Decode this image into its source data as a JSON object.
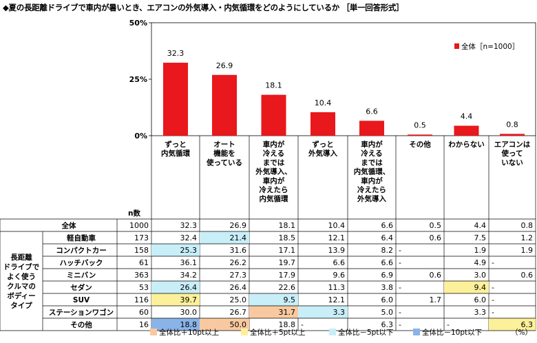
{
  "title": "◆夏の長距離ドライブで車内が暑いとき、エアコンの外気導入・内気循環をどのようにしているか ［単一回答形式］",
  "chart_data": {
    "type": "bar",
    "categories": [
      "ずっと\n内気循環",
      "オート\n機能を\n使っている",
      "車内が\n冷える\nまでは\n外気導入、\n車内が\n冷えたら\n内気循環",
      "ずっと\n外気導入",
      "車内が\n冷える\nまでは\n内気循環、\n車内が\n冷えたら\n外気導入",
      "その他",
      "わからない",
      "エアコンは\n使って\nいない"
    ],
    "values": [
      32.3,
      26.9,
      18.1,
      10.4,
      6.6,
      0.5,
      4.4,
      0.8
    ],
    "series_name": "全体［n=1000］",
    "y_ticks": [
      "0%",
      "25%",
      "50%"
    ],
    "ylim": [
      0,
      50
    ],
    "bar_color": "#e8181c",
    "n_label": "n数",
    "group_label": "長距離\nドライブで\nよく使う\nクルマの\nボディー\nタイプ",
    "table": {
      "rows": [
        {
          "label": "全体",
          "n": "1000",
          "cells": [
            "32.3",
            "26.9",
            "18.1",
            "10.4",
            "6.6",
            "0.5",
            "4.4",
            "0.8"
          ],
          "hl": [
            "",
            "",
            "",
            "",
            "",
            "",
            "",
            ""
          ]
        },
        {
          "label": "軽自動車",
          "n": "173",
          "cells": [
            "32.4",
            "21.4",
            "18.5",
            "12.1",
            "6.4",
            "0.6",
            "7.5",
            "1.2"
          ],
          "hl": [
            "",
            "c",
            "",
            "",
            "",
            "",
            "",
            ""
          ]
        },
        {
          "label": "コンパクトカー",
          "n": "158",
          "cells": [
            "25.3",
            "31.6",
            "17.1",
            "13.9",
            "8.2",
            "-",
            "1.9",
            "1.9"
          ],
          "hl": [
            "c",
            "",
            "",
            "",
            "",
            "",
            "",
            ""
          ]
        },
        {
          "label": "ハッチバック",
          "n": "61",
          "cells": [
            "36.1",
            "26.2",
            "19.7",
            "6.6",
            "6.6",
            "-",
            "4.9",
            "-"
          ],
          "hl": [
            "",
            "",
            "",
            "",
            "",
            "",
            "",
            ""
          ]
        },
        {
          "label": "ミニバン",
          "n": "363",
          "cells": [
            "34.2",
            "27.3",
            "17.9",
            "9.6",
            "6.9",
            "0.6",
            "3.0",
            "0.6"
          ],
          "hl": [
            "",
            "",
            "",
            "",
            "",
            "",
            "",
            ""
          ]
        },
        {
          "label": "セダン",
          "n": "53",
          "cells": [
            "26.4",
            "26.4",
            "22.6",
            "11.3",
            "3.8",
            "-",
            "9.4",
            "-"
          ],
          "hl": [
            "c",
            "",
            "",
            "",
            "",
            "",
            "y",
            ""
          ]
        },
        {
          "label": "SUV",
          "n": "116",
          "cells": [
            "39.7",
            "25.0",
            "9.5",
            "12.1",
            "6.0",
            "1.7",
            "6.0",
            "-"
          ],
          "hl": [
            "y",
            "",
            "c",
            "",
            "",
            "",
            "",
            ""
          ]
        },
        {
          "label": "ステーションワゴン",
          "n": "60",
          "cells": [
            "30.0",
            "26.7",
            "31.7",
            "3.3",
            "5.0",
            "-",
            "3.3",
            "-"
          ],
          "hl": [
            "",
            "",
            "o",
            "c",
            "",
            "",
            "",
            ""
          ]
        },
        {
          "label": "その他",
          "n": "16",
          "cells": [
            "18.8",
            "50.0",
            "18.8",
            "-",
            "6.3",
            "-",
            "-",
            "6.3"
          ],
          "hl": [
            "b",
            "o",
            "",
            "",
            "",
            "",
            "",
            "y"
          ]
        }
      ]
    },
    "legend": [
      {
        "label": "全体比＋10pt以上",
        "color": "#f8c9a0"
      },
      {
        "label": "全体比＋5pt以上",
        "color": "#fcf09a"
      },
      {
        "label": "全体比－5pt以下",
        "color": "#c8eef8"
      },
      {
        "label": "全体比－10pt以下",
        "color": "#8ab4e8"
      }
    ],
    "unit": "（%）"
  }
}
